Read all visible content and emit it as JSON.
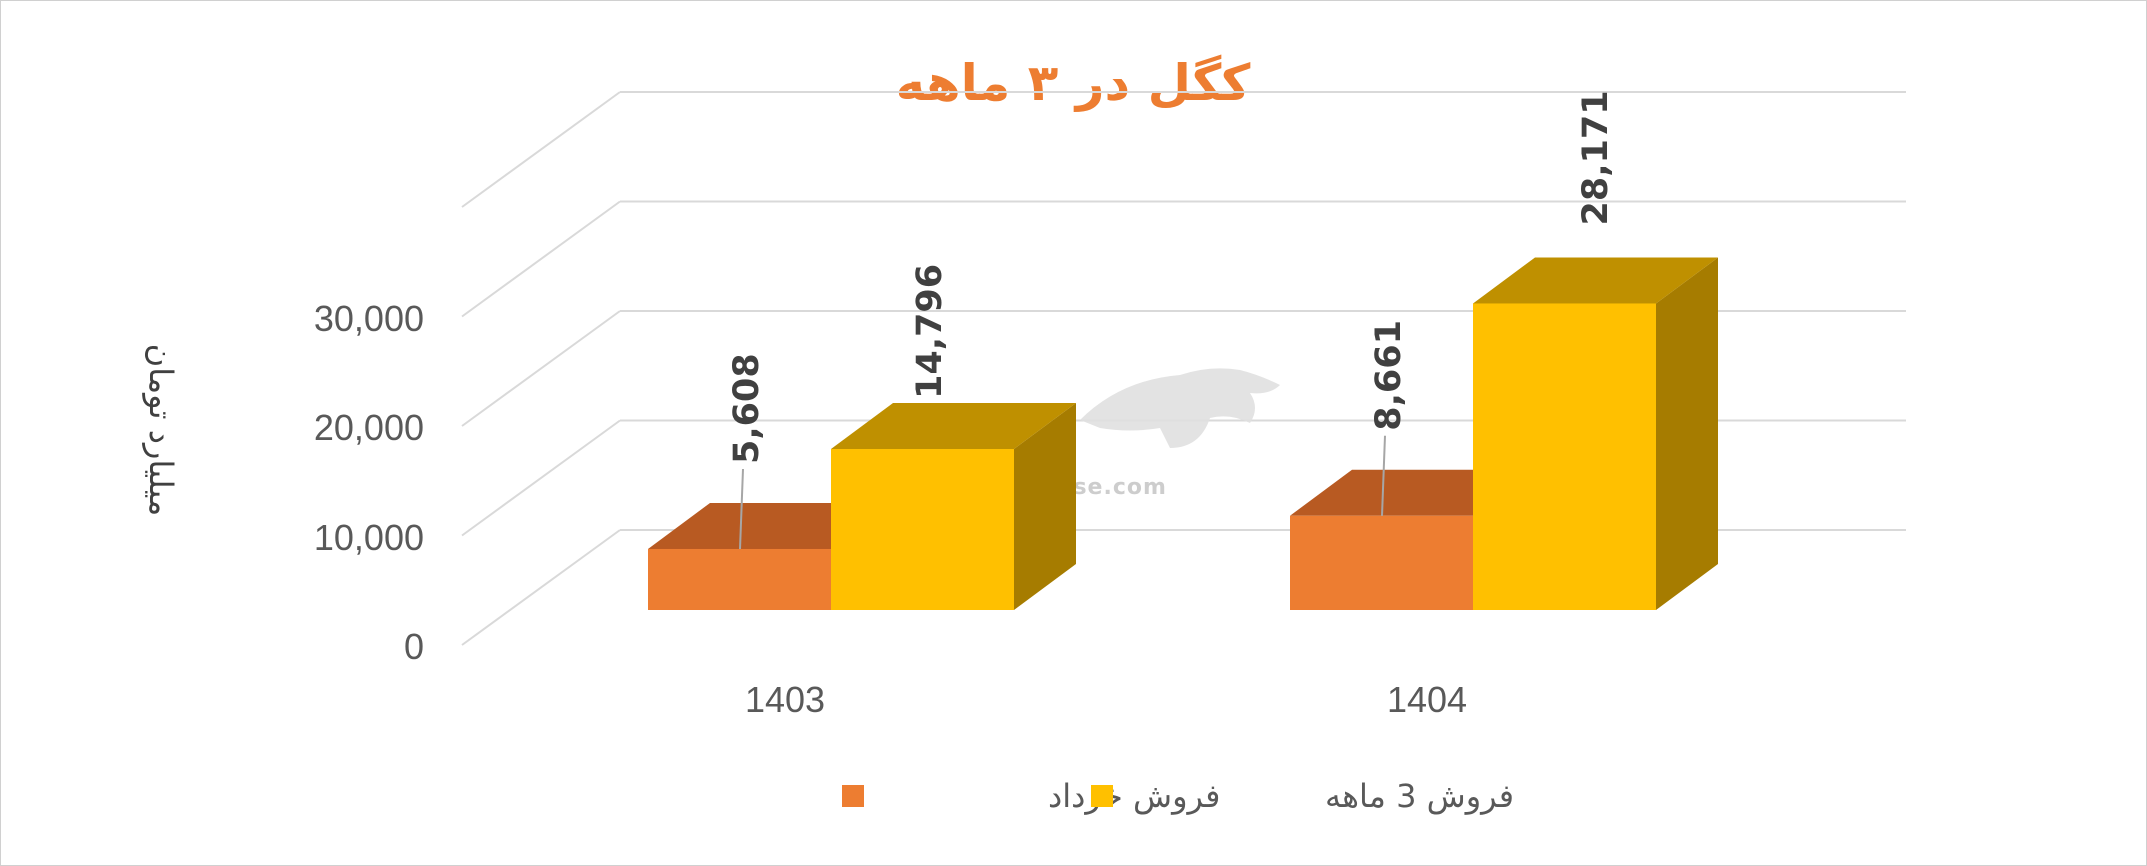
{
  "chart_data": {
    "type": "bar",
    "title": "کگل در ۳ ماهه",
    "ylabel": "میلیارد تومان",
    "xlabel": "",
    "categories": [
      "1403",
      "1404"
    ],
    "series": [
      {
        "name": "فروش خرداد",
        "values": [
          5608,
          8661
        ],
        "labels": [
          "5,608",
          "8,661"
        ],
        "color": "#ED7D31"
      },
      {
        "name": "فروش 3  ماهه",
        "values": [
          14796,
          28171
        ],
        "labels": [
          "14,796",
          "28,171"
        ],
        "color": "#FFC000"
      }
    ],
    "ylim": [
      0,
      40000
    ],
    "yticks": [
      "0",
      "10,000",
      "20,000",
      "30,000"
    ],
    "grid": true,
    "legend_position": "bottom",
    "style": "3d-clustered-column"
  },
  "watermark": {
    "text": "nabzebourse.com"
  }
}
